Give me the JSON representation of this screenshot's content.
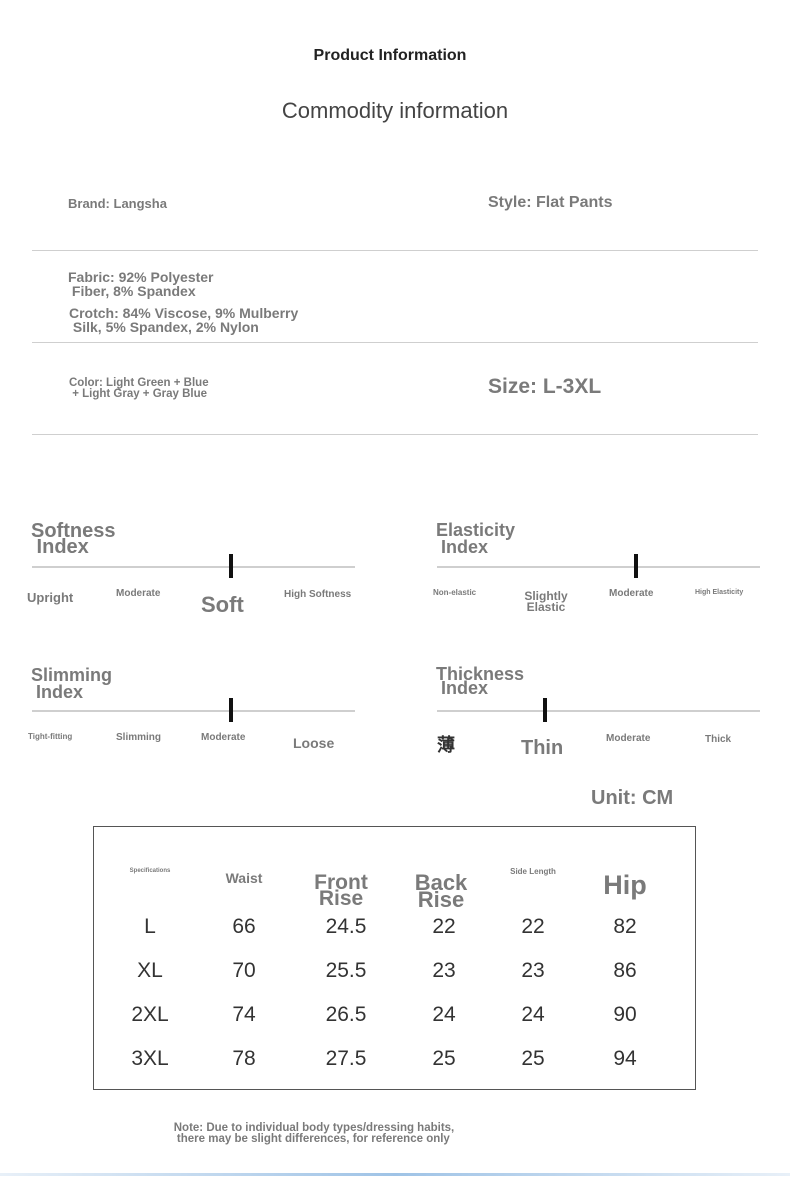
{
  "header": {
    "title": "Product Information",
    "subtitle": "Commodity information"
  },
  "info": {
    "brand": "Brand: Langsha",
    "style": "Style: Flat Pants",
    "fabric": "Fabric: 92% Polyester\n Fiber, 8% Spandex",
    "crotch": "Crotch: 84% Viscose, 9% Mulberry\n Silk, 5% Spandex, 2% Nylon",
    "color": "Color: Light Green + Blue\n + Light Gray + Gray Blue",
    "size": "Size: L-3XL"
  },
  "indices": [
    {
      "title": "Softness\n Index",
      "labels": [
        "Upright",
        "Moderate",
        "Soft",
        "High Softness"
      ],
      "selected": "Soft"
    },
    {
      "title": "Elasticity\n Index",
      "labels": [
        "Non-elastic",
        "Slightly\nElastic",
        "Moderate",
        "High Elasticity"
      ],
      "selected": "Moderate"
    },
    {
      "title": "Slimming\n Index",
      "labels": [
        "Tight-fitting",
        "Slimming",
        "Moderate",
        "Loose"
      ],
      "selected": "Moderate"
    },
    {
      "title": "Thickness\n Index",
      "labels": [
        "薄",
        "Thin",
        "Moderate",
        "Thick"
      ],
      "selected": "Thin"
    }
  ],
  "unit": "Unit: CM",
  "size_table": {
    "headers": [
      "Specifications",
      "Waist",
      "Front\nRise",
      "Back\nRise",
      "Side Length",
      "Hip"
    ],
    "rows": [
      [
        "L",
        "66",
        "24.5",
        "22",
        "22",
        "82"
      ],
      [
        "XL",
        "70",
        "25.5",
        "23",
        "23",
        "86"
      ],
      [
        "2XL",
        "74",
        "26.5",
        "24",
        "24",
        "90"
      ],
      [
        "3XL",
        "78",
        "27.5",
        "25",
        "25",
        "94"
      ]
    ]
  },
  "note": "Note: Due to individual body types/dressing habits,\n there may be slight differences, for reference only",
  "colors": {
    "text": "#7a7a7a",
    "marker": "#111111",
    "accent_bar": "#9fc3e6"
  }
}
